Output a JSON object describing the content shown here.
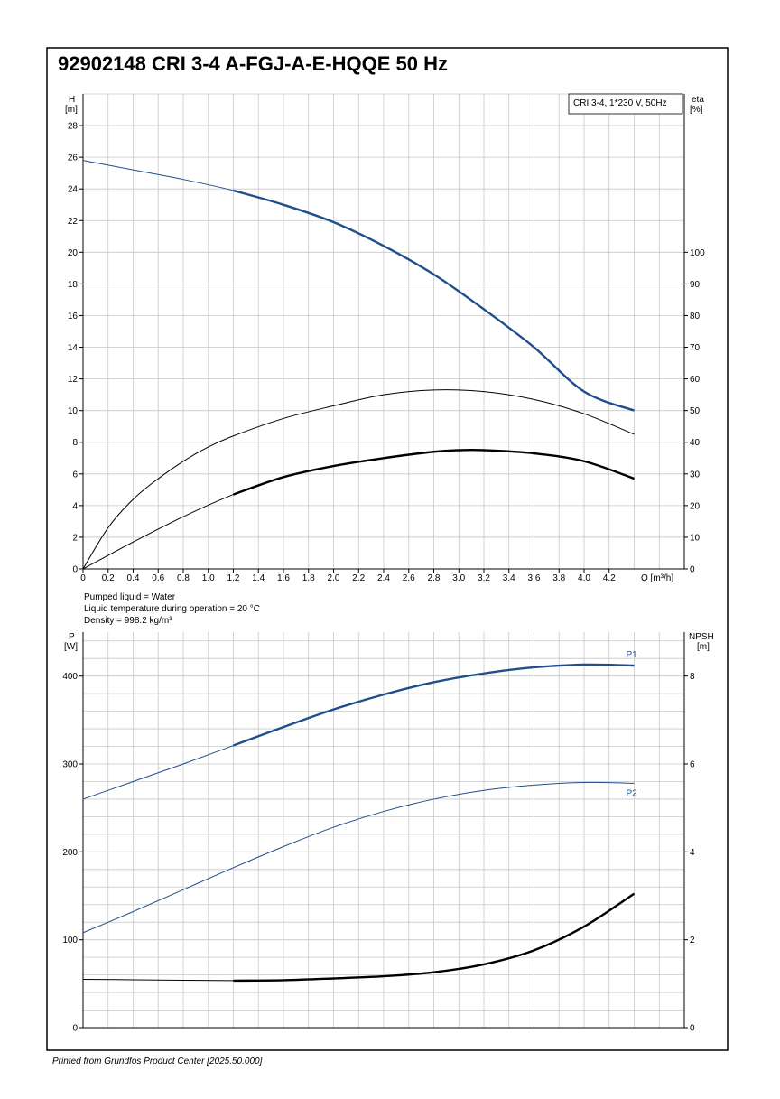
{
  "title": "92902148 CRI 3-4 A-FGJ-A-E-HQQE 50 Hz",
  "footer": "Printed from Grundfos Product Center [2025.50.000]",
  "colors": {
    "blue": "#1f4e8c",
    "black": "#000000",
    "grid": "#c8c8c8"
  },
  "chart_data": [
    {
      "type": "line",
      "legend_box": "CRI 3-4, 1*230 V, 50Hz",
      "xlabel": "Q [m³/h]",
      "ylabel": "H\n[m]",
      "y2label": "eta\n[%]",
      "xlim": [
        0,
        4.8
      ],
      "ylim": [
        0,
        30
      ],
      "y2lim": [
        0,
        150
      ],
      "x_ticks": [
        "0",
        "0.2",
        "0.4",
        "0.6",
        "0.8",
        "1.0",
        "1.2",
        "1.4",
        "1.6",
        "1.8",
        "2.0",
        "2.2",
        "2.4",
        "2.6",
        "2.8",
        "3.0",
        "3.2",
        "3.4",
        "3.6",
        "3.8",
        "4.0",
        "4.2"
      ],
      "y_ticks": [
        "0",
        "2",
        "4",
        "6",
        "8",
        "10",
        "12",
        "14",
        "16",
        "18",
        "20",
        "22",
        "24",
        "26",
        "28"
      ],
      "y2_ticks": [
        "0",
        "10",
        "20",
        "30",
        "40",
        "50",
        "60",
        "70",
        "80",
        "90",
        "100"
      ],
      "grid": true,
      "series": [
        {
          "axis": "left",
          "color": "#1f4e8c",
          "x": [
            0,
            0.4,
            0.8,
            1.2,
            1.6,
            2.0,
            2.4,
            2.8,
            3.2,
            3.6,
            4.0,
            4.4
          ],
          "y": [
            25.8,
            25.2,
            24.6,
            23.9,
            23.0,
            21.9,
            20.4,
            18.6,
            16.4,
            14.0,
            11.2,
            10.0
          ],
          "bold_from": 1.2
        },
        {
          "axis": "right",
          "color": "#000000",
          "x": [
            0,
            0.2,
            0.4,
            0.6,
            0.8,
            1.0,
            1.2,
            1.6,
            2.0,
            2.4,
            2.8,
            3.2,
            3.6,
            4.0,
            4.4
          ],
          "y": [
            0,
            13,
            22,
            28.5,
            34,
            38.5,
            42,
            47.5,
            51.5,
            55,
            56.5,
            56,
            53.5,
            49,
            42.5
          ]
        },
        {
          "axis": "right",
          "color": "#000000",
          "x": [
            0,
            0.4,
            0.8,
            1.2,
            1.6,
            2.0,
            2.4,
            2.8,
            3.0,
            3.2,
            3.6,
            4.0,
            4.4
          ],
          "y": [
            0,
            8.5,
            16.5,
            23.5,
            29,
            32.5,
            35,
            37,
            37.5,
            37.5,
            36.5,
            34,
            28.5
          ],
          "bold_from": 1.2
        }
      ]
    },
    {
      "type": "line",
      "notes": [
        "Pumped liquid = Water",
        "Liquid temperature during operation = 20 °C",
        "Density = 998.2 kg/m³"
      ],
      "ylabel": "P\n[W]",
      "y2label": "NPSH\n[m]",
      "xlim": [
        0,
        4.8
      ],
      "ylim": [
        0,
        450
      ],
      "y2lim": [
        0,
        9
      ],
      "y_ticks": [
        "0",
        "100",
        "200",
        "300",
        "400"
      ],
      "y2_ticks": [
        "0",
        "2",
        "4",
        "6",
        "8"
      ],
      "grid": true,
      "series": [
        {
          "name": "P1",
          "axis": "left",
          "color": "#1f4e8c",
          "x": [
            0,
            0.4,
            0.8,
            1.2,
            1.6,
            2.0,
            2.4,
            2.8,
            3.2,
            3.6,
            4.0,
            4.4
          ],
          "y": [
            260,
            280,
            300,
            321,
            342,
            362,
            379,
            393,
            403,
            410,
            413,
            412
          ],
          "bold_from": 1.2
        },
        {
          "name": "P2",
          "axis": "left",
          "color": "#1f4e8c",
          "x": [
            0,
            0.4,
            0.8,
            1.2,
            1.6,
            2.0,
            2.4,
            2.8,
            3.2,
            3.6,
            4.0,
            4.4
          ],
          "y": [
            108,
            132,
            157,
            182,
            206,
            228,
            246,
            260,
            270,
            276,
            279,
            278
          ]
        },
        {
          "axis": "right",
          "color": "#000000",
          "x": [
            0,
            0.4,
            0.8,
            1.2,
            1.6,
            2.0,
            2.4,
            2.8,
            3.2,
            3.6,
            4.0,
            4.4
          ],
          "y": [
            1.1,
            1.09,
            1.08,
            1.07,
            1.08,
            1.12,
            1.17,
            1.26,
            1.44,
            1.76,
            2.3,
            3.05
          ],
          "bold_from": 1.2
        }
      ]
    }
  ]
}
